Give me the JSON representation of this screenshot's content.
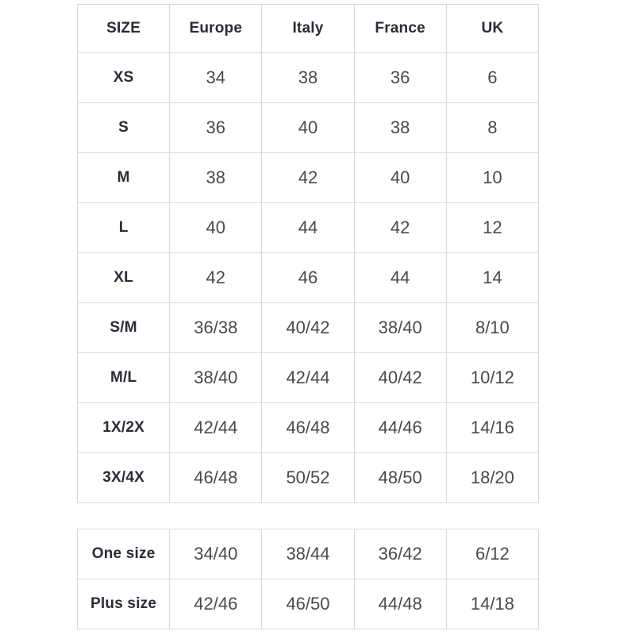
{
  "colors": {
    "border": "#d9d9d9",
    "header_text": "#2b2b38",
    "cell_text": "#4a4a4a",
    "background": "#ffffff"
  },
  "chart_data": [
    {
      "type": "table",
      "title": "",
      "columns": [
        "SIZE",
        "Europe",
        "Italy",
        "France",
        "UK"
      ],
      "rows": [
        [
          "XS",
          "34",
          "38",
          "36",
          "6"
        ],
        [
          "S",
          "36",
          "40",
          "38",
          "8"
        ],
        [
          "M",
          "38",
          "42",
          "40",
          "10"
        ],
        [
          "L",
          "40",
          "44",
          "42",
          "12"
        ],
        [
          "XL",
          "42",
          "46",
          "44",
          "14"
        ],
        [
          "S/M",
          "36/38",
          "40/42",
          "38/40",
          "8/10"
        ],
        [
          "M/L",
          "38/40",
          "42/44",
          "40/42",
          "10/12"
        ],
        [
          "1X/2X",
          "42/44",
          "46/48",
          "44/46",
          "14/16"
        ],
        [
          "3X/4X",
          "46/48",
          "50/52",
          "48/50",
          "18/20"
        ]
      ]
    },
    {
      "type": "table",
      "title": "",
      "columns": [],
      "rows": [
        [
          "One size",
          "34/40",
          "38/44",
          "36/42",
          "6/12"
        ],
        [
          "Plus size",
          "42/46",
          "46/50",
          "44/48",
          "14/18"
        ]
      ]
    }
  ]
}
